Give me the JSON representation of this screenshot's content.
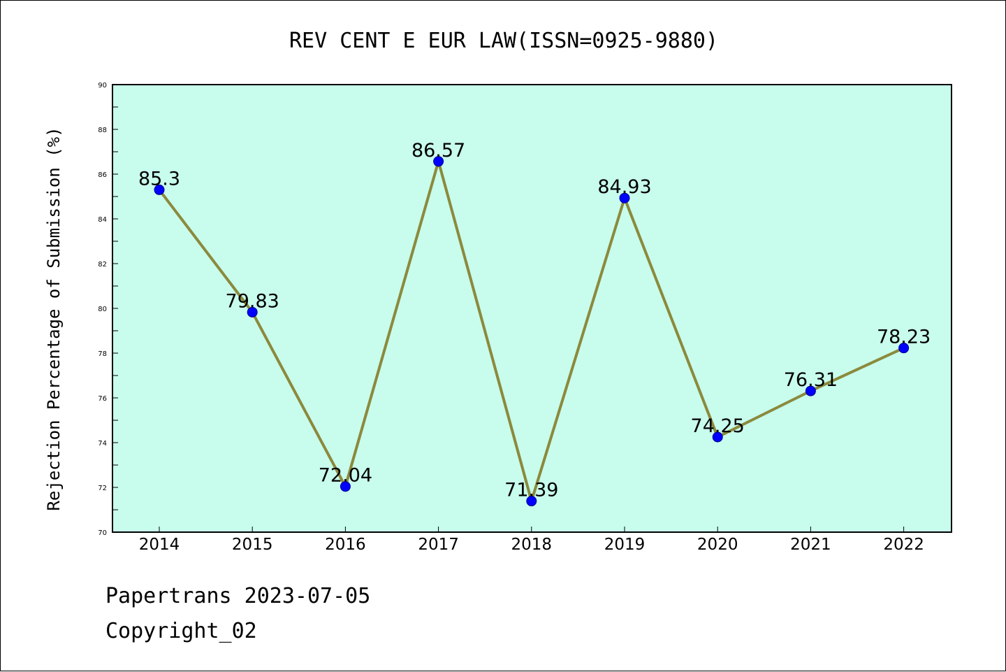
{
  "chart_data": {
    "type": "line",
    "title": "REV CENT E EUR LAW(ISSN=0925-9880)",
    "ylabel": "Rejection Percentage of Submission (%)",
    "xlabel": "",
    "categories": [
      "2014",
      "2015",
      "2016",
      "2017",
      "2018",
      "2019",
      "2020",
      "2021",
      "2022"
    ],
    "values": [
      85.3,
      79.83,
      72.04,
      86.57,
      71.39,
      84.93,
      74.25,
      76.31,
      78.23
    ],
    "data_labels": [
      "85.3",
      "79.83",
      "72.04",
      "86.57",
      "71.39",
      "84.93",
      "74.25",
      "76.31",
      "78.23"
    ],
    "ylim": [
      70,
      90
    ],
    "yticks": [
      70,
      72,
      74,
      76,
      78,
      80,
      82,
      84,
      86,
      88,
      90
    ],
    "grid": false,
    "legend": "none",
    "colors": {
      "plot_background": "#c8fced",
      "line": "#8b8a3c",
      "marker": "#0000ff"
    }
  },
  "footer": {
    "line1": "Papertrans 2023-07-05",
    "line2": "Copyright_02"
  }
}
